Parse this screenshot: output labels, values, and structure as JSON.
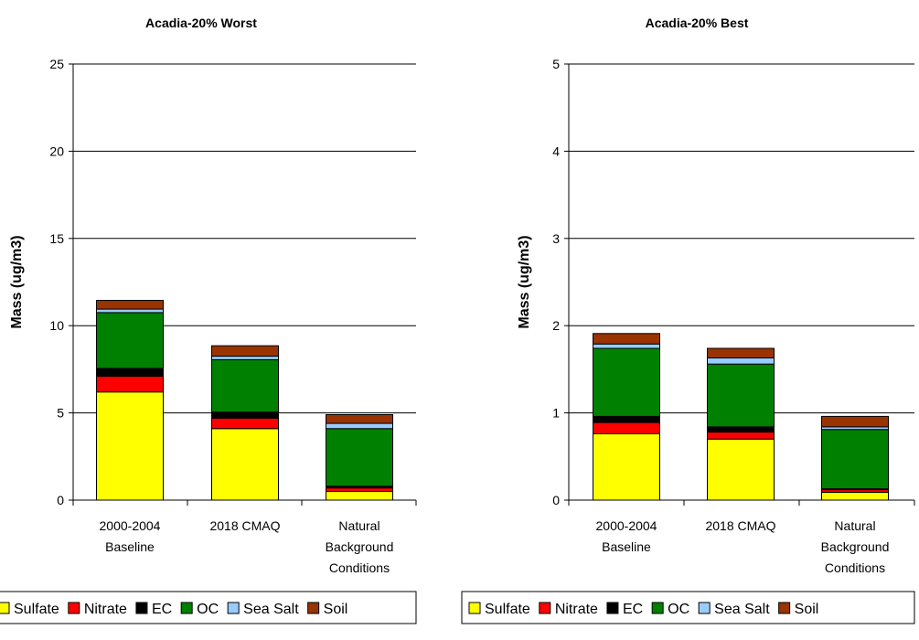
{
  "colors": {
    "Sulfate": "#ffff00",
    "Nitrate": "#ff0000",
    "EC": "#000000",
    "OC": "#008000",
    "Sea Salt": "#99ccff",
    "Soil": "#993300"
  },
  "chart_data": [
    {
      "type": "bar",
      "stacked": true,
      "title": "Acadia-20% Worst",
      "ylabel": "Mass (ug/m3)",
      "xlabel": "",
      "ylim": [
        0,
        25
      ],
      "yticks": [
        "0",
        "5",
        "10",
        "15",
        "20",
        "25"
      ],
      "categories": [
        [
          "2000-2004",
          "Baseline"
        ],
        [
          "2018 CMAQ"
        ],
        [
          "Natural",
          "Background",
          "Conditions"
        ]
      ],
      "legend": "bottom",
      "grid": true,
      "series": [
        {
          "name": "Sulfate",
          "values": [
            6.2,
            4.1,
            0.5
          ]
        },
        {
          "name": "Nitrate",
          "values": [
            0.9,
            0.6,
            0.2
          ]
        },
        {
          "name": "EC",
          "values": [
            0.45,
            0.35,
            0.1
          ]
        },
        {
          "name": "OC",
          "values": [
            3.2,
            3.0,
            3.3
          ]
        },
        {
          "name": "Sea Salt",
          "values": [
            0.2,
            0.2,
            0.3
          ]
        },
        {
          "name": "Soil",
          "values": [
            0.5,
            0.6,
            0.5
          ]
        }
      ]
    },
    {
      "type": "bar",
      "stacked": true,
      "title": "Acadia-20% Best",
      "ylabel": "Mass (ug/m3)",
      "xlabel": "",
      "ylim": [
        0,
        5
      ],
      "yticks": [
        "0",
        "1",
        "2",
        "3",
        "4",
        "5"
      ],
      "categories": [
        [
          "2000-2004",
          "Baseline"
        ],
        [
          "2018 CMAQ"
        ],
        [
          "Natural",
          "Background",
          "Conditions"
        ]
      ],
      "legend": "bottom",
      "grid": true,
      "series": [
        {
          "name": "Sulfate",
          "values": [
            0.76,
            0.7,
            0.09
          ]
        },
        {
          "name": "Nitrate",
          "values": [
            0.13,
            0.08,
            0.03
          ]
        },
        {
          "name": "EC",
          "values": [
            0.07,
            0.06,
            0.01
          ]
        },
        {
          "name": "OC",
          "values": [
            0.78,
            0.72,
            0.68
          ]
        },
        {
          "name": "Sea Salt",
          "values": [
            0.05,
            0.07,
            0.03
          ]
        },
        {
          "name": "Soil",
          "values": [
            0.12,
            0.11,
            0.12
          ]
        }
      ]
    }
  ]
}
